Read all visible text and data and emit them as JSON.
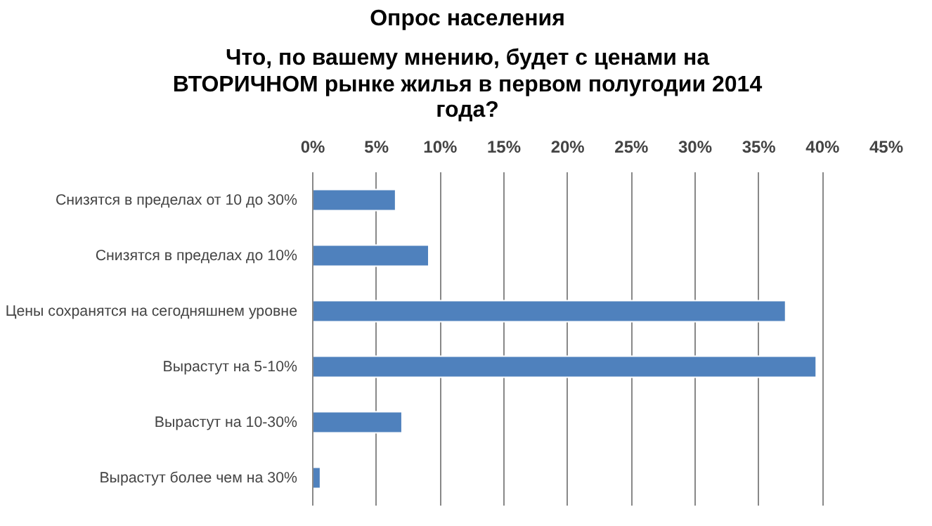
{
  "chart_data": {
    "type": "bar",
    "orientation": "horizontal",
    "title": "Опрос населения",
    "subtitle": "Что, по вашему мнению, будет с ценами на\nВТОРИЧНОМ рынке жилья в первом полугодии 2014\nгода?",
    "categories": [
      "Снизятся в пределах от 10 до 30%",
      "Снизятся в пределах до 10%",
      "Цены сохранятся на сегодняшнем уровне",
      "Вырастут на 5-10%",
      "Вырастут на 10-30%",
      "Вырастут более чем на 30%"
    ],
    "values": [
      6.5,
      9.1,
      37.1,
      39.5,
      7.0,
      0.6
    ],
    "color": "#4f81bd",
    "xlim": [
      0,
      45
    ],
    "xticks": [
      {
        "value": 0,
        "label": "0%"
      },
      {
        "value": 5,
        "label": "5%"
      },
      {
        "value": 10,
        "label": "10%"
      },
      {
        "value": 15,
        "label": "15%"
      },
      {
        "value": 20,
        "label": "20%"
      },
      {
        "value": 25,
        "label": "25%"
      },
      {
        "value": 30,
        "label": "30%"
      },
      {
        "value": 35,
        "label": "35%"
      },
      {
        "value": 40,
        "label": "40%"
      },
      {
        "value": 45,
        "label": "45%"
      }
    ],
    "grid": "x"
  }
}
